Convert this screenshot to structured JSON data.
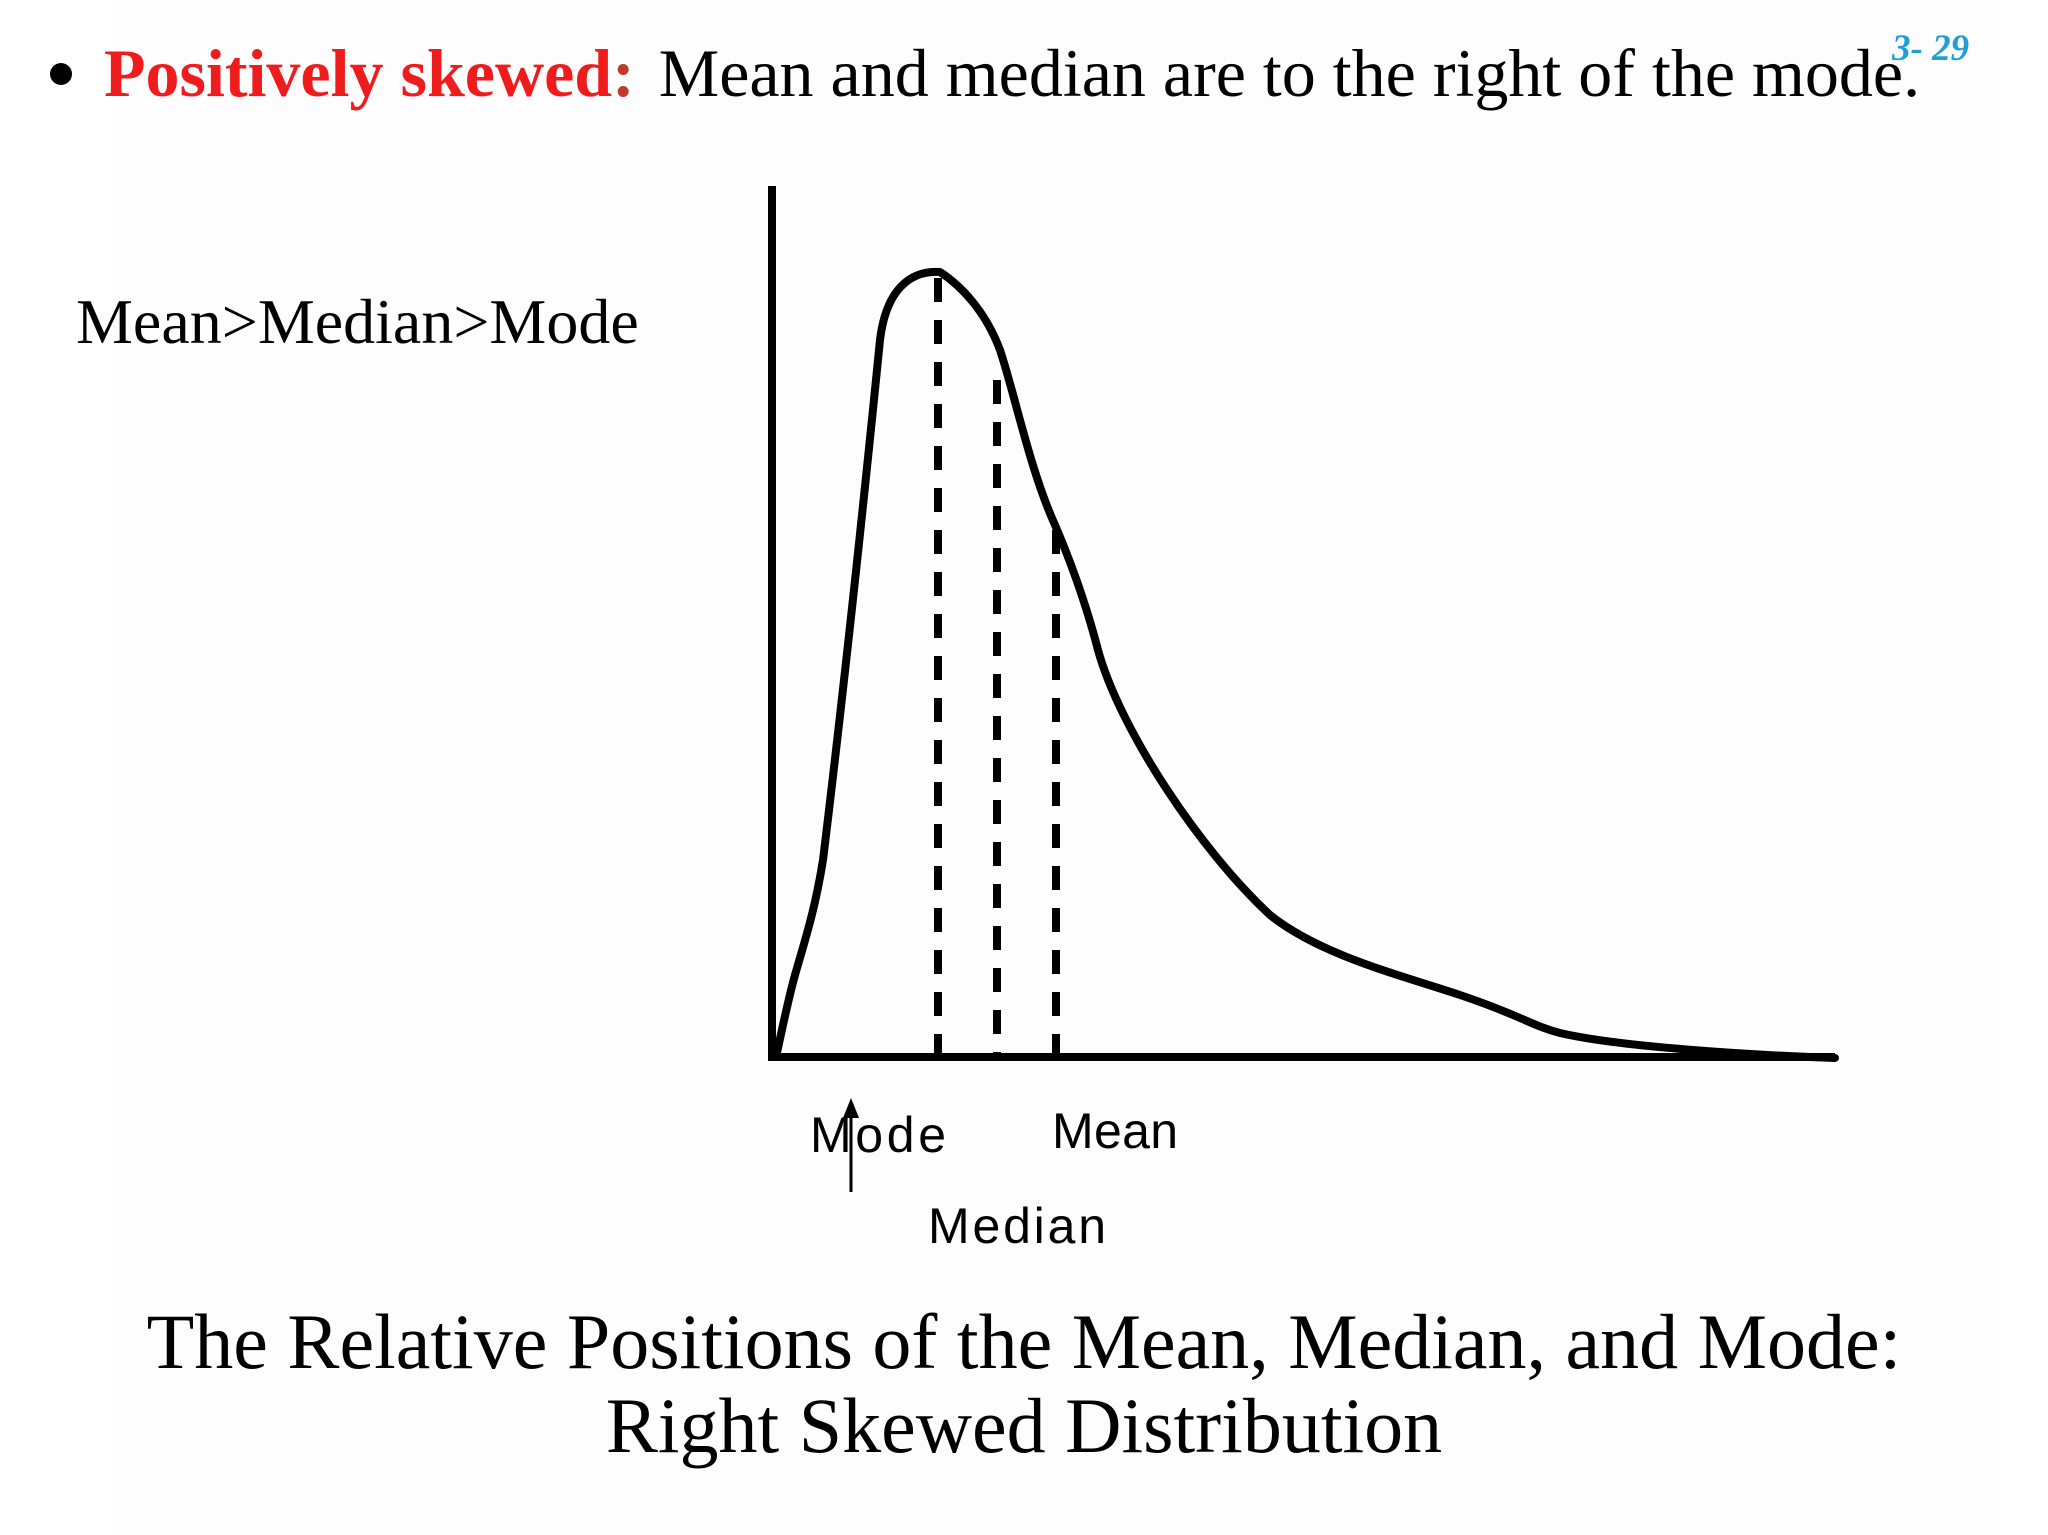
{
  "slide": {
    "number": "3- 29",
    "bullet": {
      "term": "Positively skewed",
      "colon": ":",
      "text": "Mean and median are to the right of the mode."
    },
    "relation": "Mean>Median>Mode",
    "caption": {
      "line1": "The Relative Positions of the Mean, Median, and Mode:",
      "line2": "Right Skewed Distribution"
    }
  },
  "diagram": {
    "labels": {
      "mode": "Mode",
      "median": "Median",
      "mean": "Mean"
    },
    "colors": {
      "curve": "#000000",
      "term": "#ee1c1c",
      "slide_number": "#1f9fd2"
    }
  }
}
